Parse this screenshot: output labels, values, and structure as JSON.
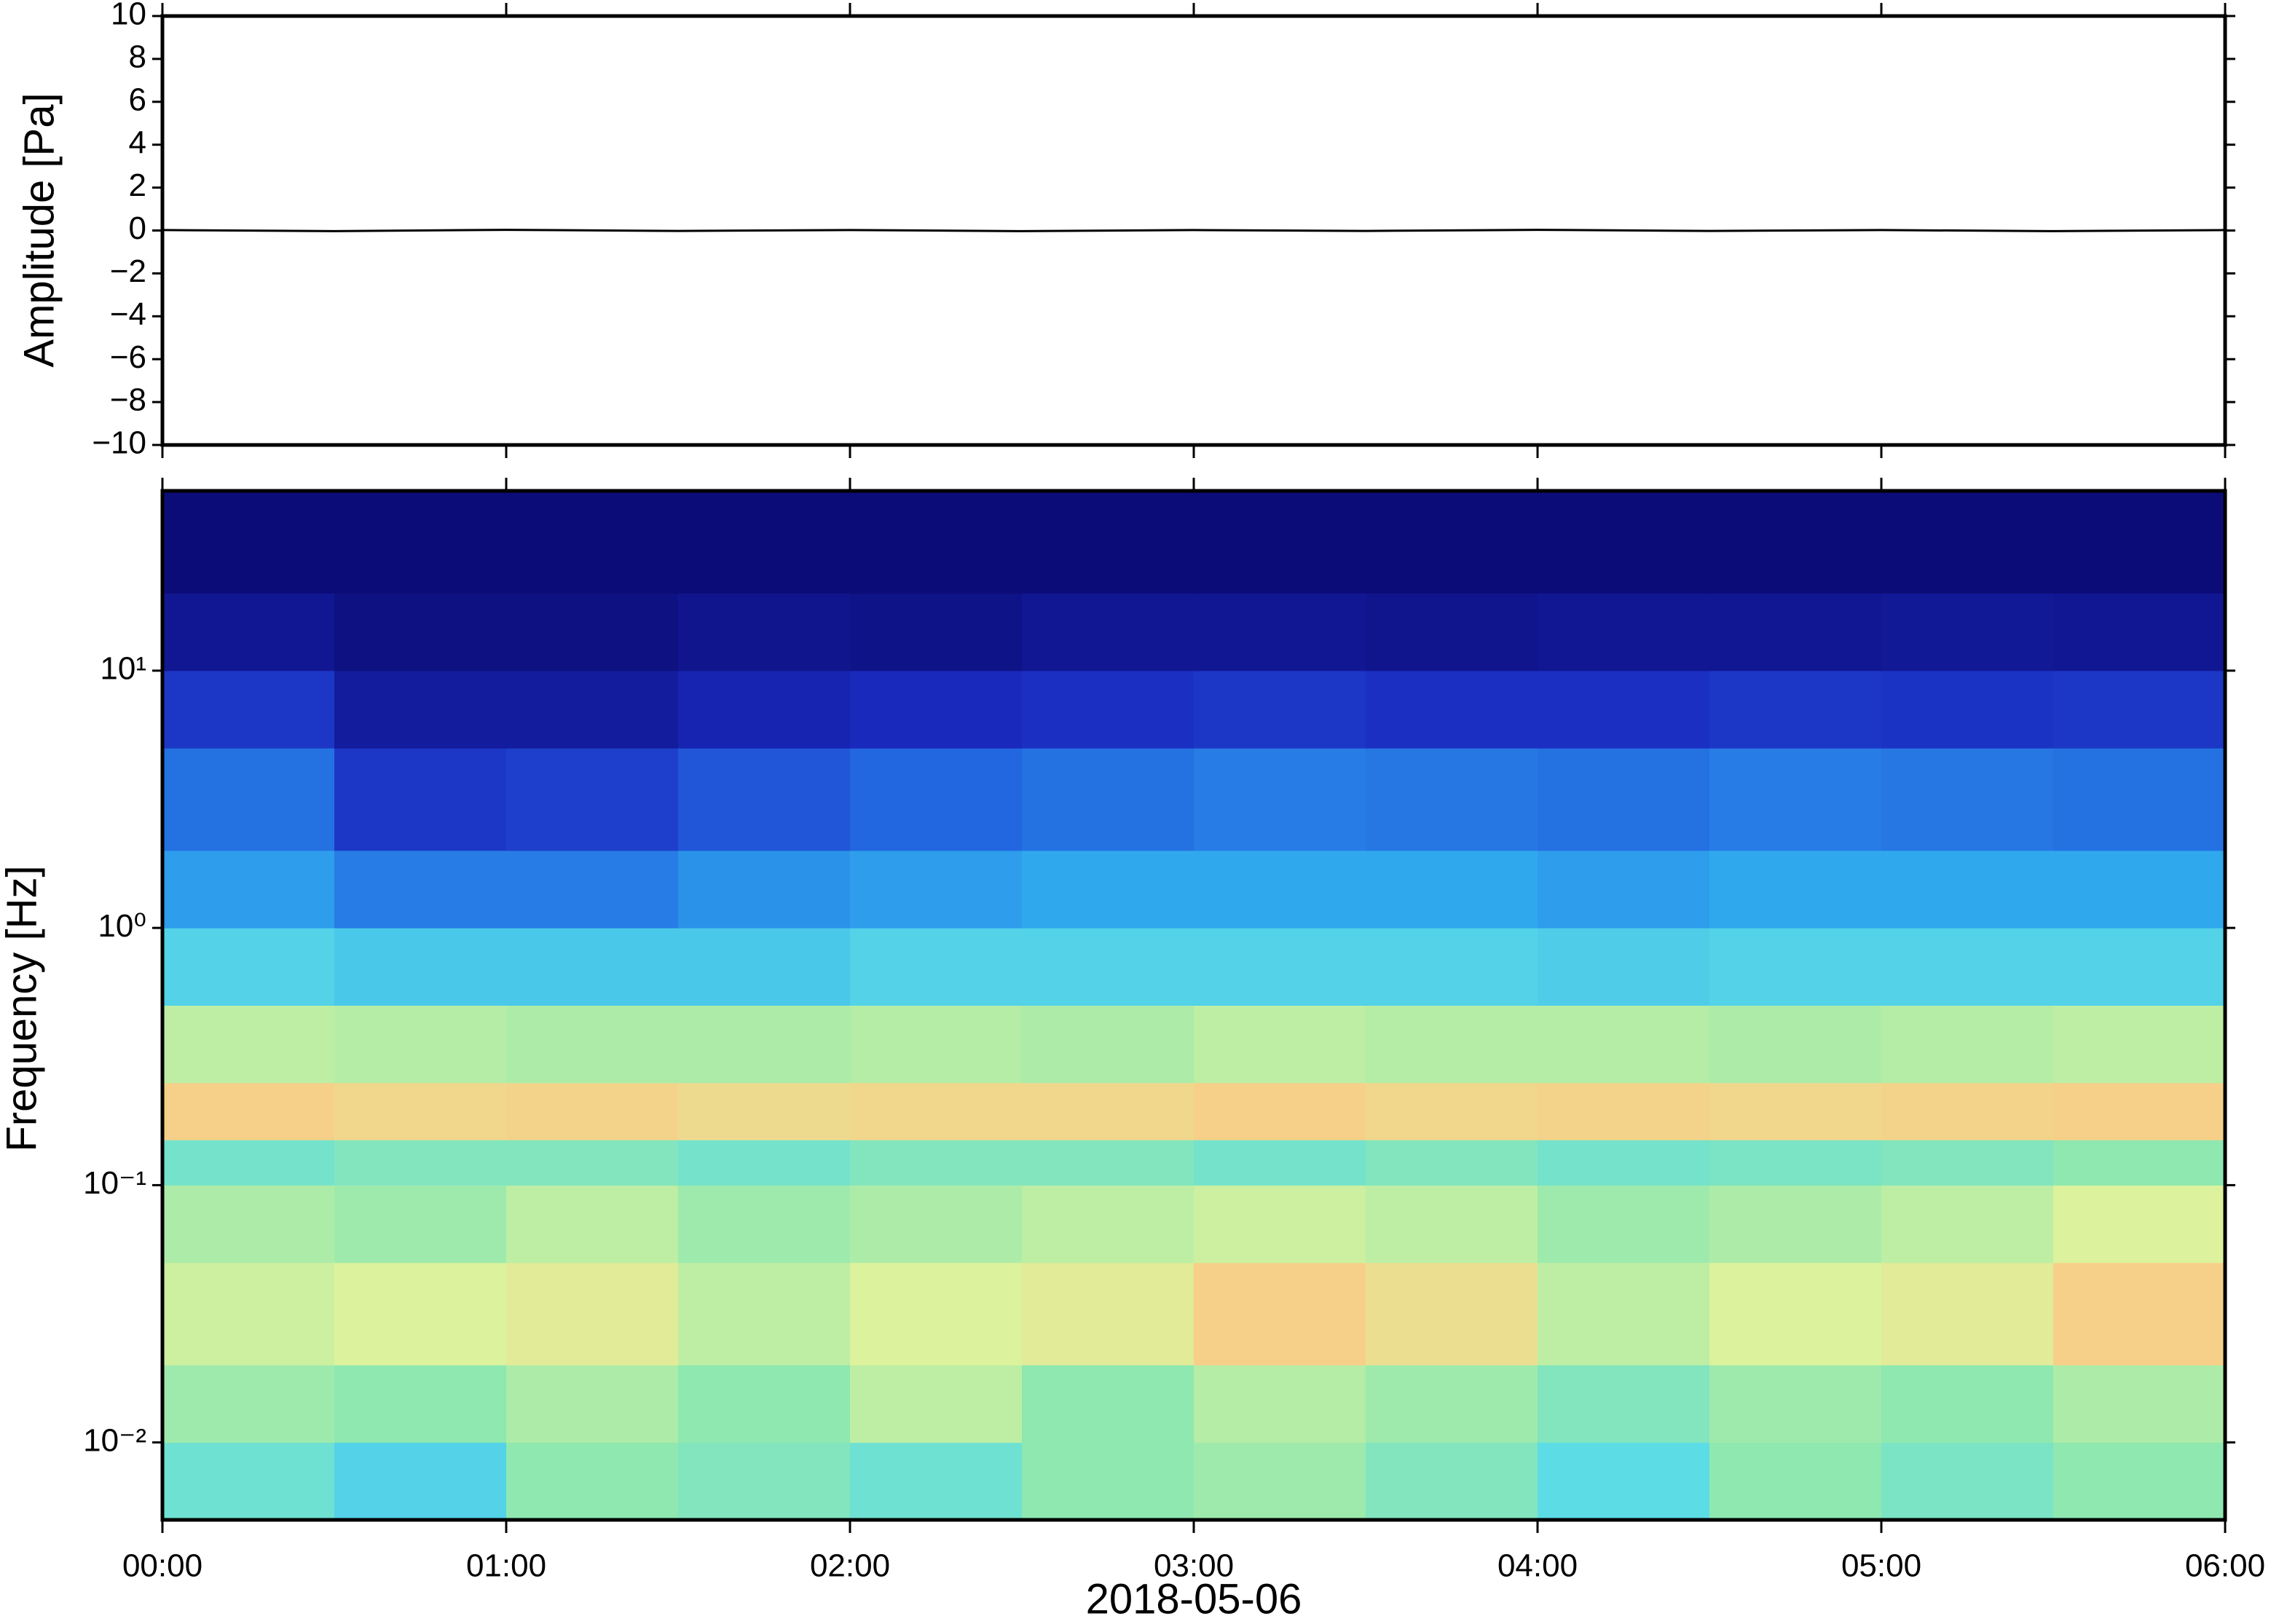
{
  "chart_data": [
    {
      "type": "line",
      "ylabel": "Amplitude [Pa]",
      "x": [
        0,
        0.5,
        1,
        1.5,
        2,
        2.5,
        3,
        3.5,
        4,
        4.5,
        5,
        5.5,
        6
      ],
      "values": [
        0.02,
        -0.03,
        0.03,
        -0.02,
        0.02,
        -0.03,
        0.02,
        -0.02,
        0.03,
        -0.02,
        0.02,
        -0.03,
        0.02
      ],
      "color": "#000000",
      "xlim": [
        0,
        6
      ],
      "xticks": [
        0,
        1,
        2,
        3,
        4,
        5,
        6
      ],
      "ylim": [
        -10,
        10
      ],
      "yticks": [
        {
          "value": -10,
          "label": "−10"
        },
        {
          "value": -8,
          "label": "−8"
        },
        {
          "value": -6,
          "label": "−6"
        },
        {
          "value": -4,
          "label": "−4"
        },
        {
          "value": -2,
          "label": "−2"
        },
        0,
        2,
        4,
        6,
        8,
        10
      ]
    },
    {
      "type": "heatmap",
      "ylabel": "Frequency [Hz]",
      "xlabel": "2018-05-06",
      "yscale": "log",
      "xlim": [
        0,
        6
      ],
      "ylim": [
        0.005,
        50
      ],
      "xticks": [
        {
          "value": 0,
          "label": "00:00"
        },
        {
          "value": 1,
          "label": "01:00"
        },
        {
          "value": 2,
          "label": "02:00"
        },
        {
          "value": 3,
          "label": "03:00"
        },
        {
          "value": 4,
          "label": "04:00"
        },
        {
          "value": 5,
          "label": "05:00"
        },
        {
          "value": 6,
          "label": "06:00"
        }
      ],
      "yticks": [
        {
          "value": 0.01,
          "label": "10⁻²"
        },
        {
          "value": 0.1,
          "label": "10⁻¹"
        },
        {
          "value": 1,
          "label": "10⁰"
        },
        {
          "value": 10,
          "label": "10¹"
        }
      ],
      "x_edges": [
        0,
        0.5,
        1,
        1.5,
        2,
        2.5,
        3,
        3.5,
        4,
        4.5,
        5,
        5.5,
        6
      ],
      "y_edges": [
        0.005,
        0.01,
        0.02,
        0.05,
        0.1,
        0.15,
        0.25,
        0.5,
        1,
        2,
        5,
        10,
        20,
        50
      ],
      "colormap": [
        [
          0,
          "#0b0a73"
        ],
        [
          0.15,
          "#1a2bc0"
        ],
        [
          0.3,
          "#2266e0"
        ],
        [
          0.42,
          "#30a8ee"
        ],
        [
          0.52,
          "#5cdde6"
        ],
        [
          0.6,
          "#8ee8b0"
        ],
        [
          0.7,
          "#dcf29c"
        ],
        [
          0.8,
          "#f6d088"
        ],
        [
          0.92,
          "#f0a048"
        ]
      ],
      "z": [
        [
          0.55,
          0.5,
          0.6,
          0.58,
          0.55,
          0.6,
          0.62,
          0.58,
          0.52,
          0.6,
          0.57,
          0.6
        ],
        [
          0.62,
          0.6,
          0.64,
          0.6,
          0.66,
          0.6,
          0.65,
          0.62,
          0.58,
          0.62,
          0.6,
          0.64
        ],
        [
          0.68,
          0.7,
          0.72,
          0.66,
          0.7,
          0.72,
          0.8,
          0.76,
          0.66,
          0.7,
          0.72,
          0.8
        ],
        [
          0.64,
          0.62,
          0.66,
          0.62,
          0.64,
          0.66,
          0.68,
          0.66,
          0.62,
          0.64,
          0.66,
          0.7
        ],
        [
          0.56,
          0.58,
          0.58,
          0.56,
          0.58,
          0.58,
          0.56,
          0.58,
          0.56,
          0.57,
          0.58,
          0.6
        ],
        [
          0.8,
          0.78,
          0.79,
          0.77,
          0.78,
          0.78,
          0.8,
          0.78,
          0.79,
          0.78,
          0.79,
          0.8
        ],
        [
          0.66,
          0.65,
          0.64,
          0.64,
          0.65,
          0.64,
          0.66,
          0.65,
          0.65,
          0.64,
          0.65,
          0.66
        ],
        [
          0.5,
          0.48,
          0.48,
          0.48,
          0.5,
          0.5,
          0.5,
          0.5,
          0.49,
          0.5,
          0.5,
          0.5
        ],
        [
          0.4,
          0.34,
          0.34,
          0.38,
          0.4,
          0.42,
          0.42,
          0.42,
          0.4,
          0.42,
          0.42,
          0.42
        ],
        [
          0.32,
          0.18,
          0.2,
          0.26,
          0.3,
          0.32,
          0.34,
          0.33,
          0.32,
          0.34,
          0.33,
          0.32
        ],
        [
          0.18,
          0.08,
          0.08,
          0.12,
          0.14,
          0.16,
          0.18,
          0.16,
          0.16,
          0.18,
          0.17,
          0.18
        ],
        [
          0.06,
          0.03,
          0.03,
          0.05,
          0.04,
          0.06,
          0.06,
          0.05,
          0.06,
          0.06,
          0.07,
          0.06
        ],
        [
          0.01,
          0.01,
          0.01,
          0.01,
          0.01,
          0.01,
          0.01,
          0.01,
          0.01,
          0.01,
          0.01,
          0.01
        ]
      ]
    }
  ]
}
